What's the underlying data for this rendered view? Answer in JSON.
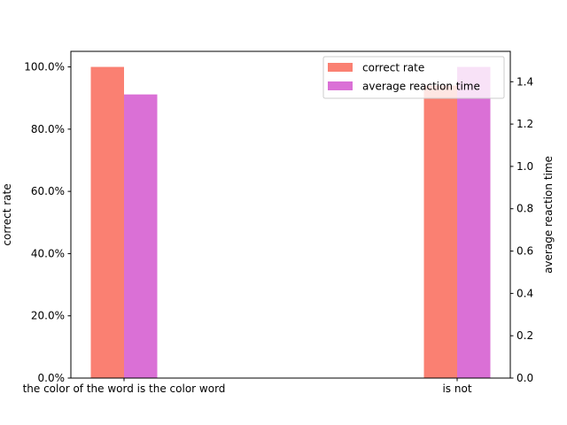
{
  "chart_data": {
    "type": "bar",
    "categories": [
      "the color of the word is the color word",
      "is not"
    ],
    "series": [
      {
        "name": "correct rate",
        "axis": "left",
        "color": "#FA8072",
        "values": [
          1.0,
          0.94
        ]
      },
      {
        "name": "average reaction time",
        "axis": "right",
        "color": "#DA70D6",
        "values": [
          1.34,
          1.47
        ]
      }
    ],
    "left_axis": {
      "label": "correct rate",
      "ylim": [
        0,
        1.05
      ],
      "ticks": [
        0,
        0.2,
        0.4,
        0.6,
        0.8,
        1.0
      ],
      "tick_labels": [
        "0.0%",
        "20.0%",
        "40.0%",
        "60.0%",
        "80.0%",
        "100.0%"
      ]
    },
    "right_axis": {
      "label": "average reaction time",
      "ylim": [
        0,
        1.5435
      ],
      "ticks": [
        0,
        0.2,
        0.4,
        0.6,
        0.8,
        1.0,
        1.2,
        1.4
      ],
      "tick_labels": [
        "0.0",
        "0.2",
        "0.4",
        "0.6",
        "0.8",
        "1.0",
        "1.2",
        "1.4"
      ]
    },
    "legend": {
      "position": "top-right",
      "alpha": 0.8
    },
    "grid": false
  }
}
